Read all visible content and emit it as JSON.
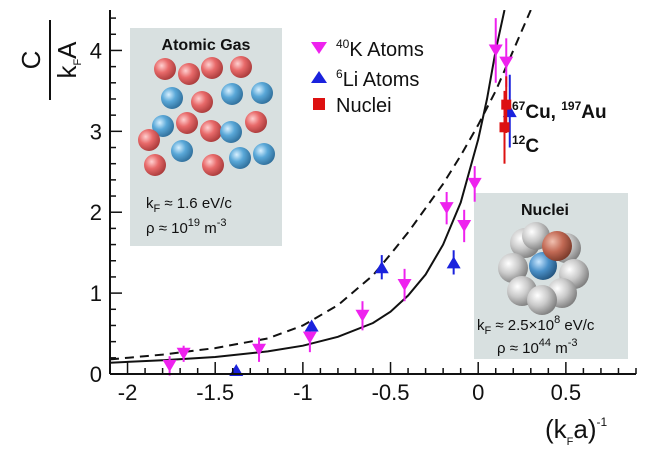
{
  "chart_data": {
    "type": "scatter",
    "title": "",
    "xlabel": "(kFa)-1",
    "ylabel": "C/kFA",
    "xlim": [
      -2.1,
      0.9
    ],
    "ylim": [
      0,
      4.5
    ],
    "x_ticks": [
      -2,
      -1.5,
      -1,
      -0.5,
      0,
      0.5
    ],
    "x_tick_labels": [
      "-2",
      "-1.5",
      "-1",
      "-0.5",
      "0",
      "0.5"
    ],
    "y_ticks": [
      0,
      1,
      2,
      3,
      4
    ],
    "y_tick_labels": [
      "0",
      "1",
      "2",
      "3",
      "4"
    ],
    "grid": false,
    "legend_position": "top-center",
    "series": [
      {
        "name": "40K Atoms",
        "legend_iso": "40",
        "legend_label": "K Atoms",
        "marker": "triangle-down",
        "color": "#ee22ee",
        "points": [
          {
            "x": -1.76,
            "y": 0.1,
            "err": 0.12
          },
          {
            "x": -1.68,
            "y": 0.25,
            "err": 0.1
          },
          {
            "x": -1.25,
            "y": 0.3,
            "err": 0.15
          },
          {
            "x": -0.96,
            "y": 0.45,
            "err": 0.18
          },
          {
            "x": -0.66,
            "y": 0.72,
            "err": 0.18
          },
          {
            "x": -0.42,
            "y": 1.1,
            "err": 0.2
          },
          {
            "x": -0.18,
            "y": 2.05,
            "err": 0.2
          },
          {
            "x": -0.08,
            "y": 1.83,
            "err": 0.2
          },
          {
            "x": -0.02,
            "y": 2.35,
            "err": 0.22
          },
          {
            "x": 0.1,
            "y": 4.0,
            "err": 0.4
          },
          {
            "x": 0.16,
            "y": 3.85,
            "err": 0.3
          }
        ]
      },
      {
        "name": "6Li Atoms",
        "legend_iso": "6",
        "legend_label": "Li Atoms",
        "marker": "triangle-up",
        "color": "#1a22dd",
        "points": [
          {
            "x": -1.38,
            "y": 0.05,
            "err": 0
          },
          {
            "x": -0.95,
            "y": 0.6,
            "err": 0
          },
          {
            "x": -0.55,
            "y": 1.32,
            "err": 0.15
          },
          {
            "x": -0.14,
            "y": 1.38,
            "err": 0.15
          },
          {
            "x": 0.18,
            "y": 3.25,
            "err": 0.45
          }
        ]
      },
      {
        "name": "Nuclei",
        "legend_label": "Nuclei",
        "marker": "square",
        "color": "#dd1111",
        "points": [
          {
            "x": 0.16,
            "y": 3.33,
            "err": 0.35
          },
          {
            "x": 0.15,
            "y": 3.05,
            "err": 0.45
          }
        ]
      }
    ],
    "curves": [
      {
        "style": "dashed",
        "x": [
          -2.1,
          -1.8,
          -1.5,
          -1.2,
          -1.0,
          -0.8,
          -0.6,
          -0.5,
          -0.4,
          -0.3,
          -0.2,
          -0.1,
          0.0,
          0.1,
          0.2,
          0.3
        ],
        "y": [
          0.18,
          0.24,
          0.32,
          0.44,
          0.6,
          0.85,
          1.22,
          1.48,
          1.75,
          2.05,
          2.35,
          2.7,
          3.08,
          3.5,
          4.0,
          4.5
        ]
      },
      {
        "style": "solid",
        "x": [
          -2.1,
          -1.8,
          -1.5,
          -1.2,
          -1.0,
          -0.8,
          -0.6,
          -0.5,
          -0.4,
          -0.3,
          -0.2,
          -0.1,
          0.0,
          0.05,
          0.1,
          0.15
        ],
        "y": [
          0.14,
          0.17,
          0.21,
          0.28,
          0.35,
          0.46,
          0.63,
          0.77,
          0.97,
          1.23,
          1.6,
          2.12,
          2.9,
          3.4,
          4.0,
          4.5
        ]
      }
    ],
    "annotations": [
      {
        "label": "67Cu, 197Au",
        "iso1": "67",
        "el1": "Cu, ",
        "iso2": "197",
        "el2": "Au",
        "x": 0.2,
        "y": 3.48
      },
      {
        "label": "12C",
        "iso": "12",
        "el": "C",
        "x": 0.2,
        "y": 3.0
      }
    ]
  },
  "ylabel_parts": {
    "num": "C",
    "den_main": "k",
    "den_sub": "F",
    "den_tail": "A"
  },
  "xlabel_parts": {
    "open": "(k",
    "sub": "F",
    "mid": "a)",
    "sup": "-1"
  },
  "inset_atomic": {
    "title": "Atomic Gas",
    "kf_pre": "k",
    "kf_sub": "F",
    "kf_value": " ≈ 1.6 eV/c",
    "rho_pre": "ρ ≈ 10",
    "rho_exp": "19",
    "rho_unit": " m",
    "rho_unit_exp": "-3"
  },
  "inset_nuclei": {
    "title": "Nuclei",
    "kf_pre": "k",
    "kf_sub": "F",
    "kf_value": " ≈ 2.5×10",
    "kf_exp": "8",
    "kf_unit": " eV/c",
    "rho_pre": "ρ ≈ 10",
    "rho_exp": "44",
    "rho_unit": " m",
    "rho_unit_exp": "-3"
  },
  "colors": {
    "atom_red": "#e86a6a",
    "atom_blue": "#5aa8d8",
    "inset_bg": "#d8e0e0",
    "nucleus_gray": "#c9c9c9",
    "nucleus_red": "#c26a55",
    "nucleus_blue": "#4a90c8"
  }
}
